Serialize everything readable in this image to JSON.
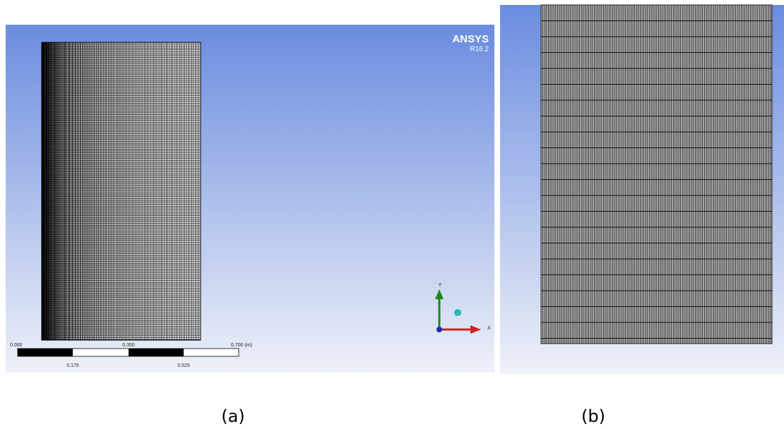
{
  "panel_a": {
    "logo": {
      "title": "ANSYS",
      "version": "R16.2"
    },
    "scale_bar": {
      "top_labels": [
        "0.000",
        "0.350",
        "0.700 (m)"
      ],
      "bottom_labels": [
        "0.175",
        "0.525"
      ]
    },
    "triad": {
      "y": "Y",
      "x": "X"
    },
    "caption": "(a)"
  },
  "panel_b": {
    "caption": "(b)"
  }
}
